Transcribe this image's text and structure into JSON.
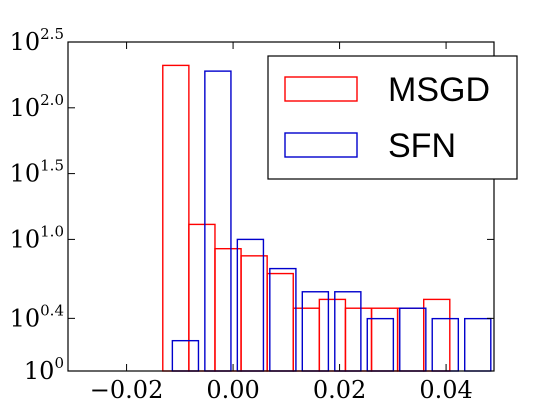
{
  "chart_data": {
    "type": "bar",
    "title": "",
    "xlabel": "",
    "ylabel": "",
    "xlim": [
      -0.031,
      0.049
    ],
    "ylim_log10": [
      0,
      2.5
    ],
    "y_scale": "log",
    "grid": false,
    "legend_placement": "top-right",
    "x_ticks": [
      {
        "value": -0.02,
        "label": "−0.02"
      },
      {
        "value": 0.0,
        "label": "0.00"
      },
      {
        "value": 0.02,
        "label": "0.02"
      },
      {
        "value": 0.04,
        "label": "0.04"
      }
    ],
    "y_ticks": [
      {
        "value_log10": 0,
        "base": "10",
        "exp": "0"
      },
      {
        "value_log10": 0.4,
        "base": "10",
        "exp": "0.4"
      },
      {
        "value_log10": 1.0,
        "base": "10",
        "exp": "1.0"
      },
      {
        "value_log10": 1.5,
        "base": "10",
        "exp": "1.5"
      },
      {
        "value_log10": 2.0,
        "base": "10",
        "exp": "2.0"
      },
      {
        "value_log10": 2.5,
        "base": "10",
        "exp": "2.5"
      }
    ],
    "series": [
      {
        "name": "MSGD",
        "color": "#ff0000",
        "bins": [
          {
            "x0": -0.0132,
            "x1": -0.0083,
            "value": 210
          },
          {
            "x0": -0.0083,
            "x1": -0.0034,
            "value": 13
          },
          {
            "x0": -0.0034,
            "x1": 0.0015,
            "value": 8.5
          },
          {
            "x0": 0.0015,
            "x1": 0.0064,
            "value": 7.5
          },
          {
            "x0": 0.0064,
            "x1": 0.0113,
            "value": 5.5
          },
          {
            "x0": 0.0113,
            "x1": 0.0162,
            "value": 3.0
          },
          {
            "x0": 0.0162,
            "x1": 0.0211,
            "value": 3.5
          },
          {
            "x0": 0.0211,
            "x1": 0.026,
            "value": 3.0
          },
          {
            "x0": 0.026,
            "x1": 0.0309,
            "value": 3.0
          },
          {
            "x0": 0.0309,
            "x1": 0.0358,
            "value": 3.0
          },
          {
            "x0": 0.0358,
            "x1": 0.0407,
            "value": 3.5
          }
        ]
      },
      {
        "name": "SFN",
        "color": "#0000cc",
        "bins": [
          {
            "x0": -0.0114,
            "x1": -0.0065,
            "value": 1.7
          },
          {
            "x0": -0.0053,
            "x1": -0.0004,
            "value": 190
          },
          {
            "x0": 0.0008,
            "x1": 0.0057,
            "value": 10
          },
          {
            "x0": 0.0069,
            "x1": 0.0118,
            "value": 6.0
          },
          {
            "x0": 0.013,
            "x1": 0.0179,
            "value": 4.0
          },
          {
            "x0": 0.0191,
            "x1": 0.024,
            "value": 4.0
          },
          {
            "x0": 0.0252,
            "x1": 0.0301,
            "value": 2.5
          },
          {
            "x0": 0.0313,
            "x1": 0.0362,
            "value": 3.0
          },
          {
            "x0": 0.0374,
            "x1": 0.0423,
            "value": 2.5
          },
          {
            "x0": 0.0435,
            "x1": 0.0484,
            "value": 2.5
          }
        ]
      }
    ]
  }
}
